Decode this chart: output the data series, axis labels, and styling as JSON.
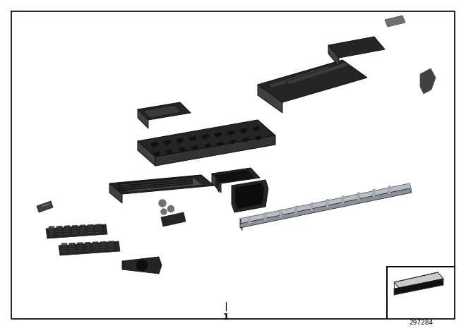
{
  "part_number": "297284",
  "label_number": "1",
  "bg_color": "#ffffff",
  "border_color": "#000000",
  "dc": "#252525",
  "mc": "#404040",
  "lc": "#707070",
  "sc": "#9aa0a8",
  "sc2": "#b8bec4"
}
